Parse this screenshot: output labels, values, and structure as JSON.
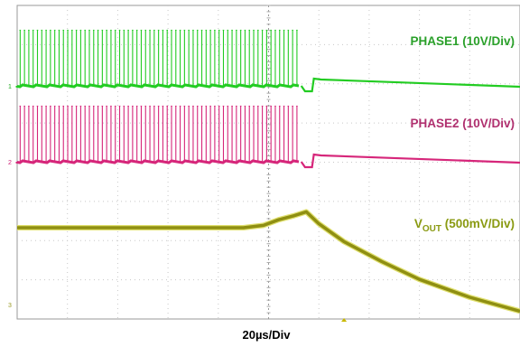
{
  "chart_data": {
    "type": "line",
    "xlabel": "20µs/Div",
    "x_unit": "µs",
    "x_per_div": 20,
    "x_range": [
      0,
      200
    ],
    "grid": true,
    "series": [
      {
        "name": "PHASE1 (10V/Div)",
        "color": "#22cc22",
        "label_color": "#2aa02a",
        "volts_per_div": 10,
        "baseline_div": -1.05,
        "description_points": [
          [
            0,
            0
          ],
          [
            113,
            0
          ],
          [
            114,
            -0.08
          ],
          [
            119,
            0.1
          ],
          [
            200,
            0
          ]
        ],
        "switching_end_us": 113,
        "pulse_amplitude_div": 1.4
      },
      {
        "name": "PHASE2 (10V/Div)",
        "color": "#d6267a",
        "label_color": "#b0306f",
        "volts_per_div": 10,
        "baseline_div": -1.1,
        "description_points": [
          [
            0,
            0
          ],
          [
            113,
            0
          ],
          [
            114,
            -0.08
          ],
          [
            119,
            0.08
          ],
          [
            200,
            0
          ]
        ],
        "switching_end_us": 113,
        "pulse_amplitude_div": 1.4
      },
      {
        "name_main": "V",
        "name_sub": "OUT",
        "name_rest": " (500mV/Div)",
        "color": "#8f8f12",
        "label_color": "#8a9a12",
        "volts_per_div": 0.5,
        "points": [
          [
            0,
            0
          ],
          [
            90,
            0
          ],
          [
            98,
            0.06
          ],
          [
            104,
            0.2
          ],
          [
            110,
            0.3
          ],
          [
            115,
            0.4
          ],
          [
            120,
            0.1
          ],
          [
            130,
            -0.35
          ],
          [
            145,
            -0.85
          ],
          [
            160,
            -1.3
          ],
          [
            180,
            -1.75
          ],
          [
            200,
            -2.1
          ]
        ]
      }
    ]
  }
}
